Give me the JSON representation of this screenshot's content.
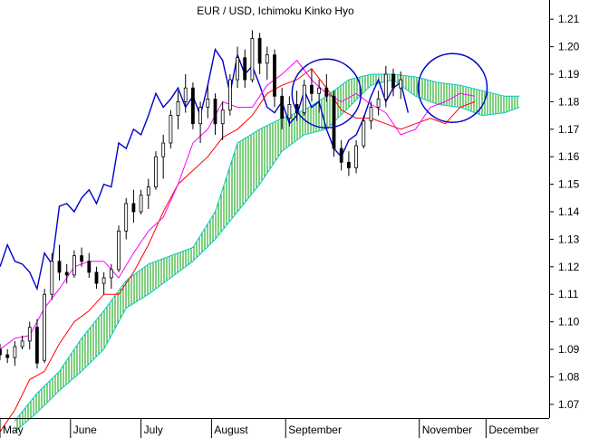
{
  "chart_data": {
    "type": "line",
    "title": "EUR / USD, Ichimoku Kinko Hyo",
    "ylim": [
      1.065,
      1.215
    ],
    "y_ticks": [
      1.07,
      1.08,
      1.09,
      1.1,
      1.11,
      1.12,
      1.13,
      1.14,
      1.15,
      1.16,
      1.17,
      1.18,
      1.19,
      1.2,
      1.21
    ],
    "y_tick_labels": [
      "1.07",
      "1.08",
      "1.09",
      "1.10",
      "1.11",
      "1.12",
      "1.13",
      "1.14",
      "1.15",
      "1.16",
      "1.17",
      "1.18",
      "1.19",
      "1.20",
      "1.21"
    ],
    "x_range": [
      0,
      148
    ],
    "months": [
      {
        "label": "May",
        "x": 0
      },
      {
        "label": "June",
        "x": 19
      },
      {
        "label": "July",
        "x": 38
      },
      {
        "label": "August",
        "x": 57
      },
      {
        "label": "September",
        "x": 77
      },
      {
        "label": "November",
        "x": 113
      },
      {
        "label": "December",
        "x": 131
      }
    ],
    "grid": false,
    "colors": {
      "candle_up": "#ffffff",
      "candle_down": "#000000",
      "tenkan": "#ff00ff",
      "kijun": "#ff0000",
      "chikou": "#0000cc",
      "cloud_line": "#00cccc",
      "cloud_fill": "#00a000",
      "highlight_circle": "#0000cc"
    },
    "series": [
      {
        "role": "chikou",
        "points": [
          [
            0,
            1.12
          ],
          [
            2,
            1.128
          ],
          [
            4,
            1.122
          ],
          [
            6,
            1.121
          ],
          [
            8,
            1.118
          ],
          [
            10,
            1.112
          ],
          [
            12,
            1.125
          ],
          [
            14,
            1.121
          ],
          [
            16,
            1.142
          ],
          [
            18,
            1.143
          ],
          [
            20,
            1.14
          ],
          [
            22,
            1.145
          ],
          [
            24,
            1.148
          ],
          [
            26,
            1.143
          ],
          [
            28,
            1.15
          ],
          [
            30,
            1.149
          ],
          [
            32,
            1.165
          ],
          [
            34,
            1.163
          ],
          [
            36,
            1.17
          ],
          [
            38,
            1.168
          ],
          [
            40,
            1.175
          ],
          [
            42,
            1.183
          ],
          [
            44,
            1.178
          ],
          [
            46,
            1.181
          ],
          [
            48,
            1.185
          ],
          [
            50,
            1.178
          ],
          [
            52,
            1.182
          ],
          [
            54,
            1.175
          ],
          [
            56,
            1.186
          ],
          [
            58,
            1.199
          ],
          [
            60,
            1.195
          ],
          [
            62,
            1.183
          ],
          [
            64,
            1.197
          ],
          [
            66,
            1.19
          ],
          [
            68,
            1.193
          ],
          [
            70,
            1.186
          ],
          [
            72,
            1.178
          ],
          [
            74,
            1.176
          ],
          [
            76,
            1.18
          ],
          [
            78,
            1.172
          ],
          [
            80,
            1.175
          ],
          [
            82,
            1.184
          ],
          [
            84,
            1.178
          ],
          [
            86,
            1.18
          ],
          [
            88,
            1.17
          ],
          [
            90,
            1.163
          ],
          [
            92,
            1.16
          ],
          [
            94,
            1.166
          ],
          [
            96,
            1.168
          ],
          [
            98,
            1.174
          ],
          [
            100,
            1.182
          ],
          [
            102,
            1.188
          ],
          [
            104,
            1.18
          ],
          [
            106,
            1.185
          ],
          [
            108,
            1.187
          ],
          [
            110,
            1.176
          ]
        ]
      },
      {
        "role": "kijun",
        "points": [
          [
            0,
            1.06
          ],
          [
            4,
            1.068
          ],
          [
            8,
            1.079
          ],
          [
            12,
            1.082
          ],
          [
            16,
            1.092
          ],
          [
            20,
            1.1
          ],
          [
            24,
            1.104
          ],
          [
            28,
            1.11
          ],
          [
            32,
            1.11
          ],
          [
            36,
            1.118
          ],
          [
            40,
            1.128
          ],
          [
            44,
            1.14
          ],
          [
            48,
            1.15
          ],
          [
            52,
            1.155
          ],
          [
            56,
            1.16
          ],
          [
            60,
            1.167
          ],
          [
            64,
            1.17
          ],
          [
            68,
            1.175
          ],
          [
            72,
            1.183
          ],
          [
            76,
            1.186
          ],
          [
            80,
            1.188
          ],
          [
            84,
            1.192
          ],
          [
            88,
            1.185
          ],
          [
            92,
            1.177
          ],
          [
            96,
            1.174
          ],
          [
            100,
            1.174
          ],
          [
            104,
            1.172
          ],
          [
            108,
            1.17
          ],
          [
            112,
            1.172
          ],
          [
            116,
            1.174
          ],
          [
            120,
            1.172
          ],
          [
            124,
            1.178
          ],
          [
            128,
            1.18
          ]
        ]
      },
      {
        "role": "tenkan",
        "points": [
          [
            0,
            1.09
          ],
          [
            4,
            1.094
          ],
          [
            8,
            1.095
          ],
          [
            12,
            1.105
          ],
          [
            16,
            1.112
          ],
          [
            20,
            1.12
          ],
          [
            24,
            1.122
          ],
          [
            28,
            1.122
          ],
          [
            32,
            1.116
          ],
          [
            36,
            1.125
          ],
          [
            40,
            1.133
          ],
          [
            44,
            1.138
          ],
          [
            48,
            1.15
          ],
          [
            52,
            1.165
          ],
          [
            56,
            1.17
          ],
          [
            60,
            1.18
          ],
          [
            64,
            1.178
          ],
          [
            68,
            1.178
          ],
          [
            72,
            1.186
          ],
          [
            76,
            1.19
          ],
          [
            80,
            1.195
          ],
          [
            84,
            1.188
          ],
          [
            88,
            1.183
          ],
          [
            92,
            1.18
          ],
          [
            96,
            1.183
          ],
          [
            100,
            1.179
          ],
          [
            104,
            1.176
          ],
          [
            108,
            1.168
          ],
          [
            112,
            1.17
          ],
          [
            116,
            1.178
          ],
          [
            120,
            1.18
          ],
          [
            124,
            1.183
          ],
          [
            128,
            1.182
          ]
        ]
      },
      {
        "role": "senkou_a",
        "points": [
          [
            4,
            1.06
          ],
          [
            10,
            1.067
          ],
          [
            16,
            1.075
          ],
          [
            22,
            1.082
          ],
          [
            28,
            1.09
          ],
          [
            34,
            1.105
          ],
          [
            40,
            1.11
          ],
          [
            46,
            1.116
          ],
          [
            52,
            1.122
          ],
          [
            58,
            1.13
          ],
          [
            64,
            1.14
          ],
          [
            70,
            1.15
          ],
          [
            76,
            1.162
          ],
          [
            82,
            1.168
          ],
          [
            88,
            1.17
          ],
          [
            94,
            1.178
          ],
          [
            100,
            1.186
          ],
          [
            106,
            1.188
          ],
          [
            112,
            1.182
          ],
          [
            118,
            1.179
          ],
          [
            124,
            1.178
          ],
          [
            130,
            1.175
          ],
          [
            136,
            1.176
          ],
          [
            140,
            1.178
          ]
        ]
      },
      {
        "role": "senkou_b",
        "points": [
          [
            4,
            1.064
          ],
          [
            10,
            1.074
          ],
          [
            16,
            1.082
          ],
          [
            22,
            1.094
          ],
          [
            28,
            1.104
          ],
          [
            34,
            1.115
          ],
          [
            40,
            1.121
          ],
          [
            46,
            1.124
          ],
          [
            52,
            1.127
          ],
          [
            58,
            1.14
          ],
          [
            64,
            1.165
          ],
          [
            70,
            1.17
          ],
          [
            76,
            1.174
          ],
          [
            82,
            1.177
          ],
          [
            88,
            1.182
          ],
          [
            94,
            1.188
          ],
          [
            100,
            1.19
          ],
          [
            106,
            1.19
          ],
          [
            112,
            1.189
          ],
          [
            118,
            1.187
          ],
          [
            124,
            1.186
          ],
          [
            130,
            1.184
          ],
          [
            136,
            1.182
          ],
          [
            140,
            1.182
          ]
        ]
      }
    ],
    "candles": [
      [
        0,
        1.09,
        1.092,
        1.086,
        1.088
      ],
      [
        2,
        1.088,
        1.09,
        1.085,
        1.087
      ],
      [
        4,
        1.087,
        1.093,
        1.084,
        1.091
      ],
      [
        6,
        1.091,
        1.095,
        1.09,
        1.093
      ],
      [
        8,
        1.093,
        1.1,
        1.09,
        1.098
      ],
      [
        10,
        1.098,
        1.101,
        1.083,
        1.085
      ],
      [
        12,
        1.086,
        1.112,
        1.085,
        1.11
      ],
      [
        14,
        1.11,
        1.125,
        1.108,
        1.122
      ],
      [
        16,
        1.122,
        1.128,
        1.115,
        1.118
      ],
      [
        18,
        1.118,
        1.121,
        1.114,
        1.117
      ],
      [
        20,
        1.117,
        1.126,
        1.116,
        1.124
      ],
      [
        22,
        1.124,
        1.127,
        1.12,
        1.122
      ],
      [
        24,
        1.122,
        1.125,
        1.116,
        1.118
      ],
      [
        26,
        1.118,
        1.12,
        1.112,
        1.114
      ],
      [
        28,
        1.114,
        1.118,
        1.11,
        1.116
      ],
      [
        30,
        1.116,
        1.121,
        1.112,
        1.119
      ],
      [
        32,
        1.119,
        1.135,
        1.118,
        1.133
      ],
      [
        34,
        1.133,
        1.145,
        1.13,
        1.143
      ],
      [
        36,
        1.143,
        1.148,
        1.136,
        1.14
      ],
      [
        38,
        1.14,
        1.148,
        1.139,
        1.146
      ],
      [
        40,
        1.146,
        1.152,
        1.141,
        1.149
      ],
      [
        42,
        1.149,
        1.162,
        1.148,
        1.16
      ],
      [
        44,
        1.16,
        1.168,
        1.152,
        1.165
      ],
      [
        46,
        1.165,
        1.177,
        1.163,
        1.175
      ],
      [
        48,
        1.175,
        1.184,
        1.17,
        1.18
      ],
      [
        50,
        1.18,
        1.19,
        1.176,
        1.185
      ],
      [
        52,
        1.185,
        1.187,
        1.17,
        1.172
      ],
      [
        54,
        1.172,
        1.18,
        1.165,
        1.178
      ],
      [
        56,
        1.178,
        1.186,
        1.174,
        1.181
      ],
      [
        58,
        1.181,
        1.183,
        1.168,
        1.172
      ],
      [
        60,
        1.172,
        1.18,
        1.166,
        1.177
      ],
      [
        62,
        1.177,
        1.19,
        1.175,
        1.188
      ],
      [
        64,
        1.188,
        1.2,
        1.185,
        1.196
      ],
      [
        66,
        1.196,
        1.199,
        1.185,
        1.188
      ],
      [
        68,
        1.188,
        1.206,
        1.187,
        1.203
      ],
      [
        70,
        1.203,
        1.205,
        1.19,
        1.194
      ],
      [
        72,
        1.194,
        1.2,
        1.188,
        1.197
      ],
      [
        74,
        1.197,
        1.199,
        1.178,
        1.182
      ],
      [
        76,
        1.182,
        1.185,
        1.17,
        1.174
      ],
      [
        78,
        1.174,
        1.182,
        1.171,
        1.179
      ],
      [
        80,
        1.179,
        1.184,
        1.173,
        1.176
      ],
      [
        82,
        1.176,
        1.188,
        1.175,
        1.186
      ],
      [
        84,
        1.186,
        1.192,
        1.18,
        1.183
      ],
      [
        86,
        1.183,
        1.188,
        1.176,
        1.185
      ],
      [
        88,
        1.185,
        1.19,
        1.18,
        1.182
      ],
      [
        90,
        1.182,
        1.184,
        1.16,
        1.163
      ],
      [
        92,
        1.163,
        1.166,
        1.155,
        1.158
      ],
      [
        94,
        1.158,
        1.162,
        1.153,
        1.156
      ],
      [
        96,
        1.156,
        1.166,
        1.154,
        1.164
      ],
      [
        98,
        1.164,
        1.175,
        1.163,
        1.173
      ],
      [
        100,
        1.173,
        1.18,
        1.17,
        1.178
      ],
      [
        102,
        1.178,
        1.184,
        1.175,
        1.181
      ],
      [
        104,
        1.181,
        1.193,
        1.178,
        1.19
      ],
      [
        106,
        1.19,
        1.192,
        1.182,
        1.185
      ],
      [
        108,
        1.185,
        1.191,
        1.181,
        1.188
      ]
    ],
    "highlight_circles": [
      {
        "x": 88,
        "y": 1.183
      },
      {
        "x": 122,
        "y": 1.185
      }
    ]
  }
}
